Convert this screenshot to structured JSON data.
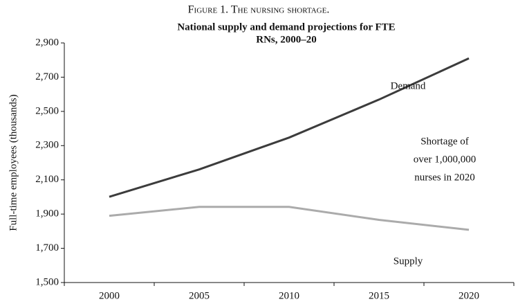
{
  "figure_caption": "Figure 1. The nursing shortage.",
  "chart_data": {
    "type": "line",
    "title": [
      "National supply and demand projections for FTE",
      "RNs, 2000–20"
    ],
    "y_label": "Full-time employees (thousands)",
    "categories": [
      "2000",
      "2005",
      "2010",
      "2015",
      "2020"
    ],
    "series": [
      {
        "name": "Demand",
        "color": "#3c3c3c",
        "values": [
          2001,
          2161,
          2347,
          2569,
          2810
        ]
      },
      {
        "name": "Supply",
        "color": "#ababab",
        "values": [
          1890,
          1942,
          1942,
          1866,
          1808
        ]
      }
    ],
    "annotation": [
      "Shortage of",
      "over 1,000,000",
      "nurses in 2020"
    ],
    "ylim": [
      1500,
      2900
    ],
    "yticks": [
      {
        "value": 1500,
        "label": "1,500"
      },
      {
        "value": 1700,
        "label": "1,700"
      },
      {
        "value": 1900,
        "label": "1,900"
      },
      {
        "value": 2100,
        "label": "2,100"
      },
      {
        "value": 2300,
        "label": "2,300"
      },
      {
        "value": 2500,
        "label": "2,500"
      },
      {
        "value": 2700,
        "label": "2,700"
      },
      {
        "value": 2900,
        "label": "2,900"
      }
    ]
  }
}
